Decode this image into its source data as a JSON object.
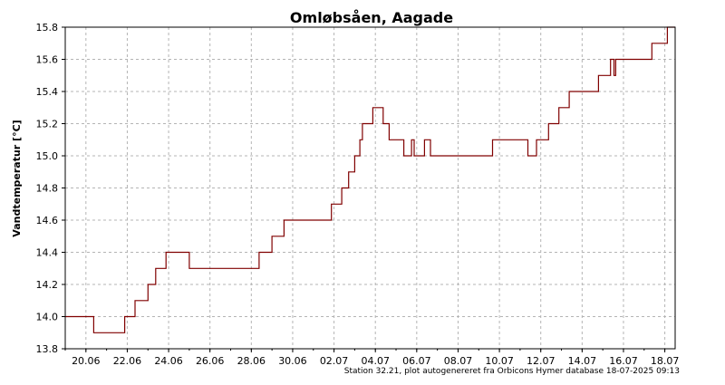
{
  "chart_data": {
    "type": "line",
    "title": "Omløbsåen, Aagade",
    "xlabel": "",
    "ylabel": "Vandtemperatur [°C]",
    "footer": "Station 32.21, plot autogenereret fra Orbicons Hymer database 18-07-2025 09:13",
    "ylim": [
      13.8,
      15.8
    ],
    "xlim": [
      "2025-06-19 00:00",
      "2025-07-18 12:00"
    ],
    "yticks": [
      13.8,
      14.0,
      14.2,
      14.4,
      14.6,
      14.8,
      15.0,
      15.2,
      15.4,
      15.6,
      15.8
    ],
    "ytick_labels": [
      "13.8",
      "14.0",
      "14.2",
      "14.4",
      "14.6",
      "14.8",
      "15.0",
      "15.2",
      "15.4",
      "15.6",
      "15.8"
    ],
    "xticks": [
      "2025-06-20",
      "2025-06-22",
      "2025-06-24",
      "2025-06-26",
      "2025-06-28",
      "2025-06-30",
      "2025-07-02",
      "2025-07-04",
      "2025-07-06",
      "2025-07-08",
      "2025-07-10",
      "2025-07-12",
      "2025-07-14",
      "2025-07-16",
      "2025-07-18"
    ],
    "xtick_labels": [
      "20.06",
      "22.06",
      "24.06",
      "26.06",
      "28.06",
      "30.06",
      "02.07",
      "04.07",
      "06.07",
      "08.07",
      "10.07",
      "12.07",
      "14.07",
      "16.07",
      "18.07"
    ],
    "grid": true,
    "series": [
      {
        "color": "#800000",
        "step": true,
        "x": [
          "2025-06-19 00:00",
          "2025-06-20 09:00",
          "2025-06-21 21:00",
          "2025-06-22 09:00",
          "2025-06-23 00:00",
          "2025-06-23 09:00",
          "2025-06-23 21:00",
          "2025-06-25 00:00",
          "2025-06-28 09:00",
          "2025-06-29 00:00",
          "2025-06-29 14:00",
          "2025-07-01 21:00",
          "2025-07-02 09:00",
          "2025-07-02 17:00",
          "2025-07-03 00:00",
          "2025-07-03 06:00",
          "2025-07-03 09:00",
          "2025-07-03 21:00",
          "2025-07-04 09:00",
          "2025-07-04 16:00",
          "2025-07-05 09:00",
          "2025-07-05 18:00",
          "2025-07-05 21:00",
          "2025-07-06 09:00",
          "2025-07-06 13:00",
          "2025-07-06 16:00",
          "2025-07-09 16:00",
          "2025-07-09 21:00",
          "2025-07-11 09:00",
          "2025-07-11 19:00",
          "2025-07-12 09:00",
          "2025-07-12 21:00",
          "2025-07-13 09:00",
          "2025-07-14 19:00",
          "2025-07-15 09:00",
          "2025-07-15 13:00",
          "2025-07-15 15:00",
          "2025-07-15 17:00",
          "2025-07-17 09:00",
          "2025-07-18 03:00",
          "2025-07-18 12:00"
        ],
        "values": [
          14.0,
          13.9,
          14.0,
          14.1,
          14.2,
          14.3,
          14.4,
          14.3,
          14.4,
          14.5,
          14.6,
          14.7,
          14.8,
          14.9,
          15.0,
          15.1,
          15.2,
          15.3,
          15.2,
          15.1,
          15.0,
          15.1,
          15.0,
          15.1,
          15.1,
          15.0,
          15.1,
          15.1,
          15.0,
          15.1,
          15.2,
          15.3,
          15.4,
          15.5,
          15.6,
          15.5,
          15.6,
          15.6,
          15.7,
          15.8,
          15.8
        ]
      }
    ]
  }
}
